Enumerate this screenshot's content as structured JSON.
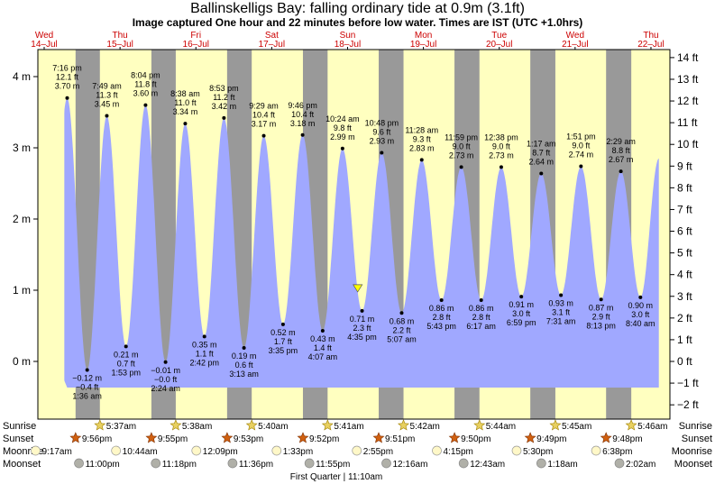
{
  "title": "Ballinskelligs Bay: falling  ordinary tide at 0.9m (3.1ft)",
  "subtitle": "Image captured One hour and 22 minutes before low water. Times are IST (UTC +1.0hrs)",
  "colors": {
    "day": "#ffffc0",
    "night": "#999999",
    "tide": "#a0a8ff",
    "date_text": "#cc0000",
    "marker": "#ffff00"
  },
  "days": [
    {
      "dow": "Wed",
      "date": "14–Jul"
    },
    {
      "dow": "Thu",
      "date": "15–Jul"
    },
    {
      "dow": "Fri",
      "date": "16–Jul"
    },
    {
      "dow": "Sat",
      "date": "17–Jul"
    },
    {
      "dow": "Sun",
      "date": "18–Jul"
    },
    {
      "dow": "Mon",
      "date": "19–Jul"
    },
    {
      "dow": "Tue",
      "date": "20–Jul"
    },
    {
      "dow": "Wed",
      "date": "21–Jul"
    },
    {
      "dow": "Thu",
      "date": "22–Jul"
    }
  ],
  "chart_data": {
    "type": "area",
    "x_unit": "hours since 00:00 Wed 14-Jul",
    "yleft_label_unit": "m",
    "yright_label_unit": "ft",
    "ylim_m": [
      -0.4,
      4.3
    ],
    "left_ticks": [
      {
        "v": 0,
        "label": "0 m"
      },
      {
        "v": 1,
        "label": "1 m"
      },
      {
        "v": 2,
        "label": "2 m"
      },
      {
        "v": 3,
        "label": "3 m"
      },
      {
        "v": 4,
        "label": "4 m"
      }
    ],
    "right_ticks": [
      {
        "v": -2,
        "label": "−2 ft"
      },
      {
        "v": -1,
        "label": "−1 ft"
      },
      {
        "v": 0,
        "label": "0 ft"
      },
      {
        "v": 1,
        "label": "1 ft"
      },
      {
        "v": 2,
        "label": "2 ft"
      },
      {
        "v": 3,
        "label": "3 ft"
      },
      {
        "v": 4,
        "label": "4 ft"
      },
      {
        "v": 5,
        "label": "5 ft"
      },
      {
        "v": 6,
        "label": "6 ft"
      },
      {
        "v": 7,
        "label": "7 ft"
      },
      {
        "v": 8,
        "label": "8 ft"
      },
      {
        "v": 9,
        "label": "9 ft"
      },
      {
        "v": 10,
        "label": "10 ft"
      },
      {
        "v": 11,
        "label": "11 ft"
      },
      {
        "v": 12,
        "label": "12 ft"
      },
      {
        "v": 13,
        "label": "13 ft"
      },
      {
        "v": 14,
        "label": "14 ft"
      }
    ],
    "tides": [
      {
        "type": "high",
        "time": "7:16 pm",
        "ft": "12.1 ft",
        "m": 3.7,
        "m_label": "3.70 m",
        "hour": 19.27
      },
      {
        "type": "low",
        "time": "1:36 am",
        "ft": "−0.4 ft",
        "m": -0.12,
        "m_label": "−0.12 m",
        "hour": 25.6
      },
      {
        "type": "high",
        "time": "7:49 am",
        "ft": "11.3 ft",
        "m": 3.45,
        "m_label": "3.45 m",
        "hour": 31.82
      },
      {
        "type": "low",
        "time": "1:53 pm",
        "ft": "0.7 ft",
        "m": 0.21,
        "m_label": "0.21 m",
        "hour": 37.88
      },
      {
        "type": "high",
        "time": "8:04 pm",
        "ft": "11.8 ft",
        "m": 3.6,
        "m_label": "3.60 m",
        "hour": 44.07
      },
      {
        "type": "low",
        "time": "2:24 am",
        "ft": "−0.0 ft",
        "m": -0.01,
        "m_label": "−0.01 m",
        "hour": 50.4
      },
      {
        "type": "high",
        "time": "8:38 am",
        "ft": "11.0 ft",
        "m": 3.34,
        "m_label": "3.34 m",
        "hour": 56.63
      },
      {
        "type": "low",
        "time": "2:42 pm",
        "ft": "1.1 ft",
        "m": 0.35,
        "m_label": "0.35 m",
        "hour": 62.7
      },
      {
        "type": "high",
        "time": "8:53 pm",
        "ft": "11.2 ft",
        "m": 3.42,
        "m_label": "3.42 m",
        "hour": 68.88
      },
      {
        "type": "low",
        "time": "3:13 am",
        "ft": "0.6 ft",
        "m": 0.19,
        "m_label": "0.19 m",
        "hour": 75.22
      },
      {
        "type": "high",
        "time": "9:29 am",
        "ft": "10.4 ft",
        "m": 3.17,
        "m_label": "3.17 m",
        "hour": 81.48
      },
      {
        "type": "low",
        "time": "3:35 pm",
        "ft": "1.7 ft",
        "m": 0.52,
        "m_label": "0.52 m",
        "hour": 87.58
      },
      {
        "type": "high",
        "time": "9:46 pm",
        "ft": "10.4 ft",
        "m": 3.18,
        "m_label": "3.18 m",
        "hour": 93.77
      },
      {
        "type": "low",
        "time": "4:07 am",
        "ft": "1.4 ft",
        "m": 0.43,
        "m_label": "0.43 m",
        "hour": 100.12
      },
      {
        "type": "high",
        "time": "10:24 am",
        "ft": "9.8 ft",
        "m": 2.99,
        "m_label": "2.99 m",
        "hour": 106.4
      },
      {
        "type": "low",
        "time": "4:35 pm",
        "ft": "2.3 ft",
        "m": 0.71,
        "m_label": "0.71 m",
        "hour": 112.58
      },
      {
        "type": "high",
        "time": "10:48 pm",
        "ft": "9.6 ft",
        "m": 2.93,
        "m_label": "2.93 m",
        "hour": 118.8
      },
      {
        "type": "low",
        "time": "5:07 am",
        "ft": "2.2 ft",
        "m": 0.68,
        "m_label": "0.68 m",
        "hour": 125.12
      },
      {
        "type": "high",
        "time": "11:28 am",
        "ft": "9.3 ft",
        "m": 2.83,
        "m_label": "2.83 m",
        "hour": 131.47
      },
      {
        "type": "low",
        "time": "5:43 pm",
        "ft": "2.8 ft",
        "m": 0.86,
        "m_label": "0.86 m",
        "hour": 137.72
      },
      {
        "type": "high",
        "time": "11:59 pm",
        "ft": "9.0 ft",
        "m": 2.73,
        "m_label": "2.73 m",
        "hour": 143.98
      },
      {
        "type": "low",
        "time": "6:17 am",
        "ft": "2.8 ft",
        "m": 0.86,
        "m_label": "0.86 m",
        "hour": 150.28
      },
      {
        "type": "high",
        "time": "12:38 pm",
        "ft": "9.0 ft",
        "m": 2.73,
        "m_label": "2.73 m",
        "hour": 156.63
      },
      {
        "type": "low",
        "time": "6:59 pm",
        "ft": "3.0 ft",
        "m": 0.91,
        "m_label": "0.91 m",
        "hour": 162.98
      },
      {
        "type": "high",
        "time": "1:17 am",
        "ft": "8.7 ft",
        "m": 2.64,
        "m_label": "2.64 m",
        "hour": 169.28
      },
      {
        "type": "low",
        "time": "7:31 am",
        "ft": "3.1 ft",
        "m": 0.93,
        "m_label": "0.93 m",
        "hour": 175.52
      },
      {
        "type": "high",
        "time": "1:51 pm",
        "ft": "9.0 ft",
        "m": 2.74,
        "m_label": "2.74 m",
        "hour": 181.85
      },
      {
        "type": "low",
        "time": "8:13 pm",
        "ft": "2.9 ft",
        "m": 0.87,
        "m_label": "0.87 m",
        "hour": 188.22
      },
      {
        "type": "high",
        "time": "2:29 am",
        "ft": "8.8 ft",
        "m": 2.67,
        "m_label": "2.67 m",
        "hour": 194.48
      },
      {
        "type": "low",
        "time": "8:40 am",
        "ft": "3.0 ft",
        "m": 0.9,
        "m_label": "0.90 m",
        "hour": 200.67
      }
    ],
    "series_end": {
      "hour": 206.5,
      "m": 2.85
    },
    "current": {
      "hour": 111.2,
      "m": 0.9
    },
    "night_bands": [
      [
        21.93,
        29.62
      ],
      [
        45.92,
        53.63
      ],
      [
        69.88,
        77.67
      ],
      [
        93.87,
        101.68
      ],
      [
        117.85,
        125.7
      ],
      [
        141.83,
        149.73
      ],
      [
        165.82,
        173.75
      ],
      [
        189.8,
        197.77
      ]
    ],
    "sun_rows": {
      "sunrise": [
        {
          "time": "5:37am",
          "hour": 29.62
        },
        {
          "time": "5:38am",
          "hour": 53.63
        },
        {
          "time": "5:40am",
          "hour": 77.67
        },
        {
          "time": "5:41am",
          "hour": 101.68
        },
        {
          "time": "5:42am",
          "hour": 125.7
        },
        {
          "time": "5:44am",
          "hour": 149.73
        },
        {
          "time": "5:45am",
          "hour": 173.75
        },
        {
          "time": "5:46am",
          "hour": 197.77
        }
      ],
      "sunset": [
        {
          "time": "9:56pm",
          "hour": 21.93
        },
        {
          "time": "9:55pm",
          "hour": 45.92
        },
        {
          "time": "9:53pm",
          "hour": 69.88
        },
        {
          "time": "9:52pm",
          "hour": 93.87
        },
        {
          "time": "9:51pm",
          "hour": 117.85
        },
        {
          "time": "9:50pm",
          "hour": 141.83
        },
        {
          "time": "9:49pm",
          "hour": 165.82
        },
        {
          "time": "9:48pm",
          "hour": 189.8
        }
      ],
      "moonrise": [
        {
          "time": "9:17am",
          "hour": 9.28
        },
        {
          "time": "10:44am",
          "hour": 34.73
        },
        {
          "time": "12:09pm",
          "hour": 60.15
        },
        {
          "time": "1:33pm",
          "hour": 85.55
        },
        {
          "time": "2:55pm",
          "hour": 110.92
        },
        {
          "time": "4:15pm",
          "hour": 136.25
        },
        {
          "time": "5:30pm",
          "hour": 161.5
        },
        {
          "time": "6:38pm",
          "hour": 186.63
        }
      ],
      "moonset": [
        {
          "time": "11:00pm",
          "hour": 23.0
        },
        {
          "time": "11:18pm",
          "hour": 47.3
        },
        {
          "time": "11:36pm",
          "hour": 71.6
        },
        {
          "time": "11:55pm",
          "hour": 95.92
        },
        {
          "time": "12:16am",
          "hour": 120.27
        },
        {
          "time": "12:43am",
          "hour": 144.72
        },
        {
          "time": "1:18am",
          "hour": 169.3
        },
        {
          "time": "2:02am",
          "hour": 194.03
        }
      ]
    },
    "row_labels": {
      "sunrise": "Sunrise",
      "sunset": "Sunset",
      "moonrise": "Moonrise",
      "moonset": "Moonset"
    },
    "moon_phase": "First Quarter | 11:10am"
  }
}
